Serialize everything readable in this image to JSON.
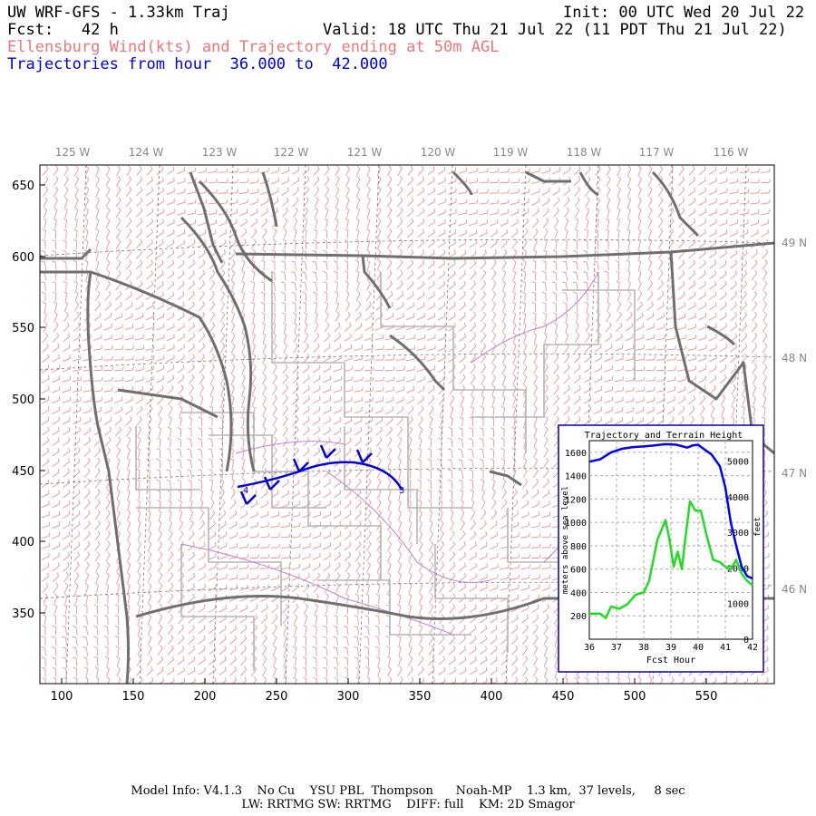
{
  "header": {
    "title": "UW WRF-GFS - 1.33km Traj",
    "init": "Init: 00 UTC Wed 20 Jul 22",
    "fcst": "Fcst:   42 h",
    "valid": "Valid: 18 UTC Thu 21 Jul 22 (11 PDT Thu 21 Jul 22)",
    "subtitle": "Ellensburg Wind(kts) and Trajectory ending at 50m AGL",
    "traj_range": "Trajectories from hour  36.000 to  42.000"
  },
  "map": {
    "x_ticks": [
      "100",
      "150",
      "200",
      "250",
      "300",
      "350",
      "400",
      "450",
      "500",
      "550"
    ],
    "y_ticks": [
      "650",
      "600",
      "550",
      "500",
      "450",
      "400",
      "350"
    ],
    "lon_labels": [
      "125 W",
      "124 W",
      "123 W",
      "122 W",
      "121 W",
      "120 W",
      "119 W",
      "118 W",
      "117 W",
      "116 W"
    ],
    "lat_labels": [
      "49 N",
      "48 N",
      "47 N",
      "46 N"
    ],
    "trajectory_markers": [
      "4",
      "3"
    ],
    "colors": {
      "coast": "#6f6f6f",
      "county": "#b5b5b5",
      "wind_barbs": "#ee8888",
      "trajectory": "#0000dd",
      "rivers": "#c080d0",
      "grid": "#777777"
    }
  },
  "inset": {
    "title": "Trajectory and Terrain Height",
    "xlabel": "Fcst Hour",
    "ylabel_left": "meters above sea level",
    "ylabel_right": "feet",
    "x_ticks": [
      "36",
      "37",
      "38",
      "39",
      "40",
      "41",
      "42"
    ],
    "y_left_ticks": [
      "200",
      "400",
      "600",
      "800",
      "1000",
      "1200",
      "1400",
      "1600"
    ],
    "y_right_ticks": [
      "0",
      "1000",
      "2000",
      "3000",
      "4000",
      "5000"
    ]
  },
  "chart_data": {
    "type": "line",
    "title": "Trajectory and Terrain Height",
    "xlabel": "Fcst Hour",
    "ylabel": "meters above sea level",
    "xlim": [
      36,
      42
    ],
    "ylim": [
      0,
      1700
    ],
    "grid": true,
    "series": [
      {
        "color": "#0000ff",
        "x": [
          36.0,
          36.4,
          36.8,
          37.2,
          37.6,
          38.0,
          38.4,
          38.8,
          39.2,
          39.6,
          39.8,
          40.0,
          40.2,
          40.5,
          40.8,
          41.0,
          41.2,
          41.4,
          41.6,
          41.8,
          42.0
        ],
        "values": [
          1520,
          1540,
          1600,
          1630,
          1645,
          1650,
          1660,
          1670,
          1665,
          1640,
          1660,
          1665,
          1630,
          1580,
          1480,
          1300,
          1000,
          800,
          620,
          540,
          520
        ]
      },
      {
        "color": "#22dd22",
        "x": [
          36.0,
          36.4,
          36.6,
          36.8,
          37.1,
          37.4,
          37.7,
          38.0,
          38.2,
          38.5,
          38.8,
          38.95,
          39.1,
          39.25,
          39.4,
          39.55,
          39.7,
          39.9,
          40.1,
          40.3,
          40.55,
          40.8,
          41.0,
          41.2,
          41.4,
          41.6,
          41.8,
          42.0
        ],
        "values": [
          220,
          220,
          180,
          280,
          260,
          300,
          380,
          400,
          500,
          850,
          1020,
          850,
          620,
          750,
          600,
          900,
          1180,
          1100,
          1100,
          900,
          680,
          660,
          620,
          600,
          680,
          560,
          500,
          460
        ]
      }
    ]
  },
  "footer": {
    "line1": "Model Info: V4.1.3    No Cu    YSU PBL  Thompson      Noah-MP    1.3 km,  37 levels,     8 sec",
    "line2": "LW: RRTMG SW: RRTMG    DIFF: full    KM: 2D Smagor"
  }
}
